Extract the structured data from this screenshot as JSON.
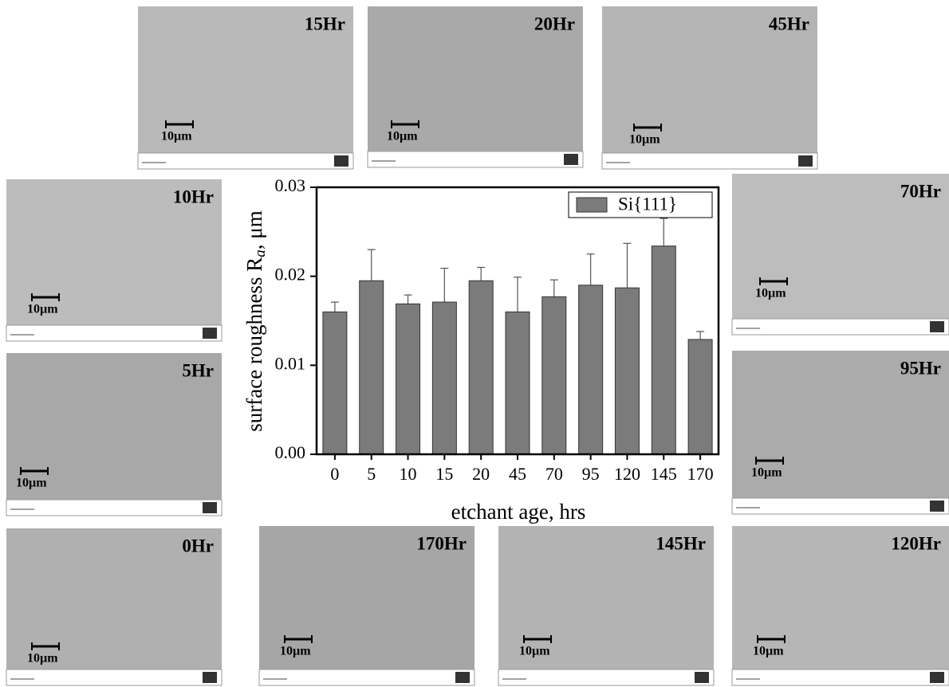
{
  "chart_data": {
    "type": "bar",
    "y_label": [
      "surface  roughness R",
      "a",
      ", μm"
    ],
    "x_label": "etchant age, hrs",
    "categories": [
      "0",
      "5",
      "10",
      "15",
      "20",
      "45",
      "70",
      "95",
      "120",
      "145",
      "170"
    ],
    "series": [
      {
        "name": "Si{111}",
        "color": "#7b7b7b",
        "values": [
          0.016,
          0.0195,
          0.0169,
          0.0171,
          0.0195,
          0.016,
          0.0177,
          0.019,
          0.0187,
          0.0234,
          0.0129
        ],
        "errors": [
          0.0011,
          0.0035,
          0.001,
          0.0038,
          0.0015,
          0.0039,
          0.0019,
          0.0035,
          0.005,
          0.0031,
          0.0009
        ]
      }
    ],
    "ylim": [
      0,
      0.03
    ],
    "yticks": [
      {
        "value": 0,
        "label": "0.00"
      },
      0.01,
      0.02,
      0.03
    ],
    "legend": "upper right"
  },
  "panels": [
    {
      "label": "15Hr",
      "scale": "10µm"
    },
    {
      "label": "20Hr",
      "scale": "10µm"
    },
    {
      "label": "45Hr",
      "scale": "10µm"
    },
    {
      "label": "10Hr",
      "scale": "10µm"
    },
    {
      "label": "70Hr",
      "scale": "10µm"
    },
    {
      "label": "5Hr",
      "scale": "10µm"
    },
    {
      "label": "95Hr",
      "scale": "10µm"
    },
    {
      "label": "0Hr",
      "scale": "10µm"
    },
    {
      "label": "170Hr",
      "scale": "10µm"
    },
    {
      "label": "145Hr",
      "scale": "10µm"
    },
    {
      "label": "120Hr",
      "scale": "10µm"
    }
  ]
}
